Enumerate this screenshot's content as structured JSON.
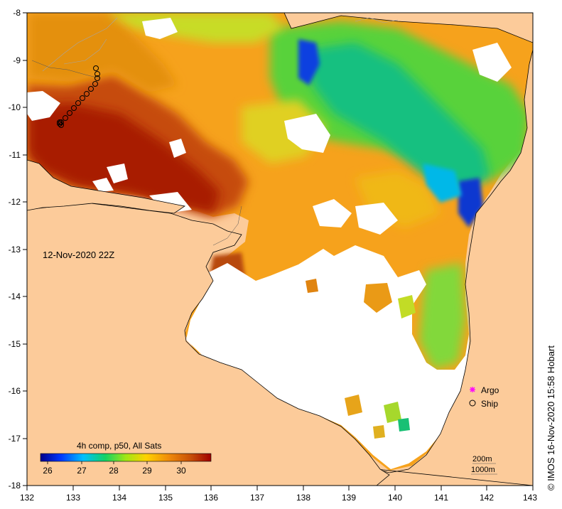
{
  "map": {
    "timestamp": "12-Nov-2020 22Z",
    "credit": "© IMOS 16-Nov-2020 15:58 Hobart",
    "colors": {
      "land": "#fccb9a",
      "no_data": "#ffffff",
      "coast": "#000000",
      "rivers": "#a6a6a6"
    },
    "x_axis": {
      "ticks": [
        "132",
        "133",
        "134",
        "135",
        "136",
        "137",
        "138",
        "139",
        "140",
        "141",
        "142",
        "143"
      ]
    },
    "y_axis": {
      "ticks": [
        "-8",
        "-9",
        "-10",
        "-11",
        "-12",
        "-13",
        "-14",
        "-15",
        "-16",
        "-17",
        "-18"
      ]
    },
    "colorbar": {
      "title": "4h comp, p50, All Sats",
      "ticks": [
        "26",
        "27",
        "28",
        "29",
        "30"
      ],
      "colors": [
        "#00008c",
        "#0038ff",
        "#00c0ff",
        "#14d264",
        "#a0e614",
        "#ffd200",
        "#f08c0a",
        "#c85008",
        "#a00000"
      ]
    },
    "legend": {
      "argo_label": "Argo",
      "ship_label": "Ship",
      "argo_color": "#ff00ff"
    },
    "scale": {
      "depth1": "200m",
      "depth2": "1000m"
    }
  }
}
